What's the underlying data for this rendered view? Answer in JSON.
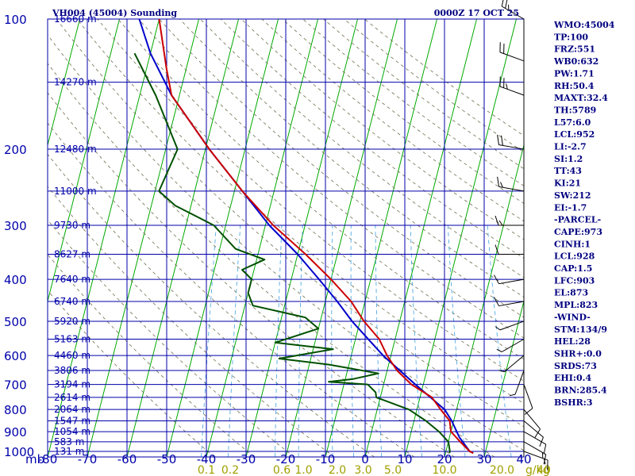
{
  "chart_data": {
    "type": "line",
    "title": "VH004 (45004) Sounding",
    "datetime": "0000Z 17 OCT 25",
    "y_unit_label": "mb",
    "x_unit_label": "g/kg",
    "pressure_ticks": [
      100,
      200,
      300,
      400,
      500,
      600,
      700,
      800,
      900,
      1000
    ],
    "pressure_tick_labels": [
      "100",
      "200",
      "300",
      "400",
      "500",
      "600",
      "700",
      "800",
      "900",
      "1000"
    ],
    "temperature_ticks": [
      -80,
      -70,
      -60,
      -50,
      -40,
      -30,
      -20,
      -10,
      0,
      10,
      20,
      30,
      40
    ],
    "temperature_tick_labels": [
      "-80",
      "-70",
      "-60",
      "-50",
      "-40",
      "-30",
      "-20",
      "-10",
      "0",
      "10",
      "20",
      "30",
      "40"
    ],
    "mixing_ratio_labels": [
      "0.1",
      "0.2",
      "0.6",
      "1.0",
      "2.0",
      "3.0",
      "5.0",
      "10.0",
      "20.0",
      "40"
    ],
    "mixing_ratio_label_positions_c": [
      -40,
      -34,
      -21,
      -15.5,
      -7,
      -0.5,
      7,
      20,
      34.5,
      45
    ],
    "height_labels": [
      {
        "p": 100,
        "text": "16660 m"
      },
      {
        "p": 140,
        "text": "14270 m"
      },
      {
        "p": 200,
        "text": "12480 m"
      },
      {
        "p": 250,
        "text": "11000 m"
      },
      {
        "p": 300,
        "text": "9730 m"
      },
      {
        "p": 350,
        "text": "8627 m"
      },
      {
        "p": 400,
        "text": "7640 m"
      },
      {
        "p": 450,
        "text": "6740 m"
      },
      {
        "p": 500,
        "text": "5920 m"
      },
      {
        "p": 550,
        "text": "5163 m"
      },
      {
        "p": 600,
        "text": "4460 m"
      },
      {
        "p": 650,
        "text": "3806 m"
      },
      {
        "p": 700,
        "text": "3194 m"
      },
      {
        "p": 750,
        "text": "2614 m"
      },
      {
        "p": 800,
        "text": "2064 m"
      },
      {
        "p": 850,
        "text": "1547 m"
      },
      {
        "p": 900,
        "text": "1054 m"
      },
      {
        "p": 950,
        "text": "583 m"
      },
      {
        "p": 1000,
        "text": "131 m"
      }
    ],
    "series": [
      {
        "name": "Temperature",
        "color": "#cc0000",
        "points": [
          {
            "p": 1009,
            "t": 27
          },
          {
            "p": 1000,
            "t": 26
          },
          {
            "p": 950,
            "t": 23
          },
          {
            "p": 900,
            "t": 20
          },
          {
            "p": 850,
            "t": 19
          },
          {
            "p": 800,
            "t": 16
          },
          {
            "p": 750,
            "t": 13
          },
          {
            "p": 700,
            "t": 7
          },
          {
            "p": 650,
            "t": 2.5
          },
          {
            "p": 600,
            "t": -1
          },
          {
            "p": 550,
            "t": -4
          },
          {
            "p": 500,
            "t": -9
          },
          {
            "p": 450,
            "t": -13.5
          },
          {
            "p": 400,
            "t": -20
          },
          {
            "p": 350,
            "t": -28
          },
          {
            "p": 300,
            "t": -38
          },
          {
            "p": 250,
            "t": -48
          },
          {
            "p": 200,
            "t": -59
          },
          {
            "p": 150,
            "t": -72
          },
          {
            "p": 130,
            "t": -75
          },
          {
            "p": 100,
            "t": -80
          }
        ]
      },
      {
        "name": "Dewpoint",
        "color": "#005000",
        "points": [
          {
            "p": 1009,
            "t": 21
          },
          {
            "p": 1000,
            "t": 21
          },
          {
            "p": 950,
            "t": 20
          },
          {
            "p": 900,
            "t": 17
          },
          {
            "p": 850,
            "t": 13
          },
          {
            "p": 800,
            "t": 8
          },
          {
            "p": 750,
            "t": -1
          },
          {
            "p": 730,
            "t": -1.5
          },
          {
            "p": 700,
            "t": -4
          },
          {
            "p": 690,
            "t": -14
          },
          {
            "p": 680,
            "t": -8
          },
          {
            "p": 660,
            "t": -2
          },
          {
            "p": 630,
            "t": -15
          },
          {
            "p": 610,
            "t": -28
          },
          {
            "p": 580,
            "t": -15
          },
          {
            "p": 560,
            "t": -30
          },
          {
            "p": 520,
            "t": -20
          },
          {
            "p": 490,
            "t": -24
          },
          {
            "p": 460,
            "t": -38
          },
          {
            "p": 430,
            "t": -40
          },
          {
            "p": 400,
            "t": -40
          },
          {
            "p": 380,
            "t": -43
          },
          {
            "p": 360,
            "t": -38
          },
          {
            "p": 340,
            "t": -46
          },
          {
            "p": 300,
            "t": -53
          },
          {
            "p": 270,
            "t": -64
          },
          {
            "p": 250,
            "t": -69
          },
          {
            "p": 200,
            "t": -67
          },
          {
            "p": 150,
            "t": -76
          },
          {
            "p": 120,
            "t": -84
          }
        ]
      },
      {
        "name": "Parcel",
        "color": "#0000cc",
        "points": [
          {
            "p": 1009,
            "t": 27
          },
          {
            "p": 1000,
            "t": 26
          },
          {
            "p": 928,
            "t": 22.5
          },
          {
            "p": 850,
            "t": 19.5
          },
          {
            "p": 800,
            "t": 17
          },
          {
            "p": 700,
            "t": 8
          },
          {
            "p": 600,
            "t": -2
          },
          {
            "p": 500,
            "t": -12
          },
          {
            "p": 450,
            "t": -17
          },
          {
            "p": 400,
            "t": -23
          },
          {
            "p": 350,
            "t": -30
          },
          {
            "p": 300,
            "t": -39
          },
          {
            "p": 250,
            "t": -48
          },
          {
            "p": 200,
            "t": -59
          },
          {
            "p": 150,
            "t": -72
          },
          {
            "p": 120,
            "t": -80
          },
          {
            "p": 100,
            "t": -85
          }
        ]
      }
    ],
    "wind_barbs": [
      {
        "p": 100,
        "dir": 300,
        "spd": 25
      },
      {
        "p": 125,
        "dir": 290,
        "spd": 20
      },
      {
        "p": 150,
        "dir": 290,
        "spd": 25
      },
      {
        "p": 200,
        "dir": 280,
        "spd": 20
      },
      {
        "p": 250,
        "dir": 280,
        "spd": 15
      },
      {
        "p": 300,
        "dir": 270,
        "spd": 15
      },
      {
        "p": 350,
        "dir": 270,
        "spd": 10
      },
      {
        "p": 400,
        "dir": 260,
        "spd": 10
      },
      {
        "p": 450,
        "dir": 260,
        "spd": 10
      },
      {
        "p": 500,
        "dir": 250,
        "spd": 5
      },
      {
        "p": 550,
        "dir": 240,
        "spd": 5
      },
      {
        "p": 600,
        "dir": 230,
        "spd": 5
      },
      {
        "p": 650,
        "dir": 200,
        "spd": 5
      },
      {
        "p": 700,
        "dir": 160,
        "spd": 10
      },
      {
        "p": 800,
        "dir": 140,
        "spd": 10
      },
      {
        "p": 850,
        "dir": 130,
        "spd": 10
      },
      {
        "p": 900,
        "dir": 120,
        "spd": 10
      },
      {
        "p": 950,
        "dir": 120,
        "spd": 15
      },
      {
        "p": 1000,
        "dir": 110,
        "spd": 15
      }
    ]
  },
  "indices": [
    "WMO:45004",
    "TP:100",
    "FRZ:551",
    "WB0:632",
    "PW:1.71",
    "RH:50.4",
    "MAXT:32.4",
    "TH:5789",
    "L57:6.0",
    "LCL:952",
    "LI:-2.7",
    "SI:1.2",
    "TT:43",
    "KI:21",
    "SW:212",
    "EI:-1.7",
    "-PARCEL-",
    "CAPE:973",
    "CINH:1",
    "LCL:928",
    "CAP:1.5",
    "LFC:903",
    "EL:873",
    "MPL:823",
    "-WIND-",
    "STM:134/9",
    "HEL:28",
    "SHR+:0.0",
    "SRDS:73",
    "EHI:0.4",
    "BRN:285.4",
    "BSHR:3"
  ],
  "colors": {
    "grid": "#0000aa",
    "isotherm": "#00aa00",
    "dry_adiabat": "#707050",
    "mixing_ratio": "#40a0e0",
    "tick_text": "#0000aa",
    "mixing_text": "#a0a000"
  }
}
